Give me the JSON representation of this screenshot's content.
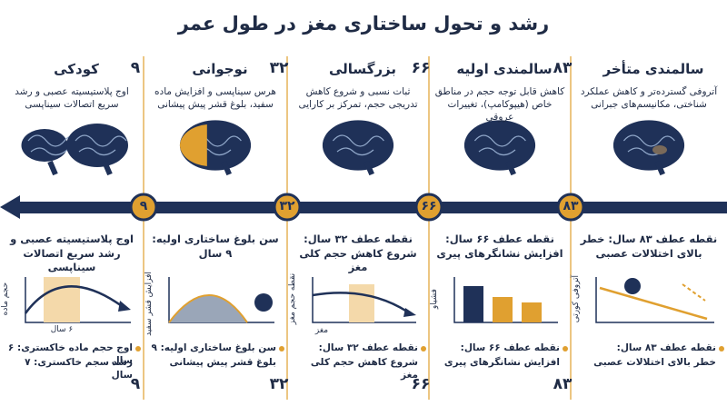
{
  "title": "رشد و تحول ساختاری مغز در طول عمر",
  "milestones": [
    "۹",
    "۳۲",
    "۶۶",
    "۸۳"
  ],
  "columns": [
    {
      "title": "کودکی",
      "description": "اوج پلاستیسیته عصبی و رشد سریع اتصالات سیناپسی",
      "detail": "اوج پلاستیسیته عصبی و رشد سریع اتصالات سیناپسی",
      "axis_label": "حجم ماده",
      "x_label": "۶ سال",
      "bullets": [
        "اوج حجم ماده خاکستری: ۶ سال",
        "رشد سجم خاکستری: ۷ سال"
      ]
    },
    {
      "title": "نوجوانی",
      "description": "هرس سیناپسی و افزایش ماده سفید، بلوغ قشر پیش پیشانی",
      "detail": "سن بلوغ ساختاری اولیه: ۹ سال",
      "axis_label": "افزایش قشر سفید",
      "bullets": [
        "سن بلوغ ساختاری اولیه: ۹",
        "بلوغ قشر پیش پیشانی"
      ]
    },
    {
      "title": "بزرگسالی",
      "description": "ثبات نسبی و شروع کاهش تدریجی حجم، تمرکز بر کارایی",
      "detail": "نقطه عطف ۳۲ سال: شروع کاهش حجم کلی مغز",
      "axis_label": "نقطه حجم مغز",
      "x_label": "مغز",
      "bullets": [
        "نقطه عطف ۳۲ سال:",
        "شروع کاهش حجم کلی مغز"
      ]
    },
    {
      "title": "سالمندی اولیه",
      "description": "کاهش قابل توجه حجم در مناطق خاص (هیپوکامپ)، تغییرات عروقی",
      "detail": "نقطه عطف ۶۶ سال: افزایش نشانگرهای پیری",
      "axis_label": "فشیاو",
      "bullets": [
        "نقطه عطف ۶۶ سال:",
        "افزایش نشانگرهای پیری"
      ]
    },
    {
      "title": "سالمندی متأخر",
      "description": "آتروفی گسترده‌تر و کاهش عملکرد شناختی، مکانیسم‌های جبرانی",
      "detail": "نقطه عطف ۸۳ سال: خطر بالای اختلالات عصبی",
      "axis_label": "آتروفی کورتی",
      "bullets": [
        "نقطه عطف ۸۳ سال:",
        "خطر بالای اختلالات عصبی"
      ]
    }
  ]
}
